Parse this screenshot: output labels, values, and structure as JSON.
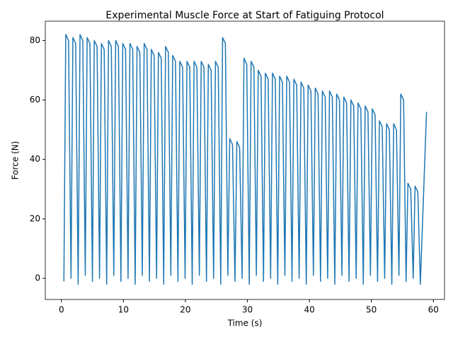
{
  "chart_data": {
    "type": "line",
    "title": "Experimental Muscle Force at Start of Fatiguing Protocol",
    "x_label": "Time (s)",
    "y_label": "Force (N)",
    "xlim": [
      -2.6,
      61.8
    ],
    "ylim": [
      -7.1,
      86.5
    ],
    "xticks": [
      0,
      10,
      20,
      30,
      40,
      50,
      60
    ],
    "yticks": [
      0,
      20,
      40,
      60,
      80
    ],
    "grid": false,
    "series": [
      {
        "color": "#1f77b4",
        "x": [
          0.4,
          0.7,
          1.15,
          1.55,
          1.85,
          2.3,
          2.7,
          3.0,
          3.45,
          3.85,
          4.15,
          4.6,
          5.0,
          5.3,
          5.75,
          6.15,
          6.45,
          6.9,
          7.3,
          7.6,
          8.05,
          8.45,
          8.75,
          9.2,
          9.6,
          9.9,
          10.35,
          10.75,
          11.05,
          11.5,
          11.9,
          12.2,
          12.65,
          13.05,
          13.35,
          13.8,
          14.2,
          14.5,
          14.95,
          15.35,
          15.65,
          16.1,
          16.5,
          16.8,
          17.25,
          17.65,
          17.95,
          18.4,
          18.8,
          19.1,
          19.55,
          19.95,
          20.25,
          20.7,
          21.1,
          21.4,
          21.85,
          22.25,
          22.55,
          23.0,
          23.4,
          23.7,
          24.15,
          24.55,
          24.85,
          25.3,
          25.7,
          26.0,
          26.45,
          26.85,
          27.15,
          27.6,
          28.0,
          28.3,
          28.75,
          29.15,
          29.45,
          29.9,
          30.3,
          30.6,
          31.05,
          31.45,
          31.75,
          32.2,
          32.6,
          32.9,
          33.35,
          33.75,
          34.05,
          34.5,
          34.9,
          35.2,
          35.65,
          36.05,
          36.35,
          36.8,
          37.2,
          37.5,
          37.95,
          38.35,
          38.65,
          39.1,
          39.5,
          39.8,
          40.25,
          40.65,
          40.95,
          41.4,
          41.8,
          42.1,
          42.55,
          42.95,
          43.25,
          43.7,
          44.1,
          44.4,
          44.85,
          45.25,
          45.55,
          46.0,
          46.4,
          46.7,
          47.15,
          47.55,
          47.85,
          48.3,
          48.7,
          49.0,
          49.45,
          49.85,
          50.15,
          50.6,
          51.0,
          51.3,
          51.75,
          52.15,
          52.45,
          52.9,
          53.3,
          53.6,
          54.05,
          54.45,
          54.75,
          55.2,
          55.6,
          55.9,
          56.35,
          56.75,
          57.05,
          57.5,
          57.9,
          58.9
        ],
        "values": [
          -1,
          82,
          80,
          0,
          81,
          79,
          -2,
          82,
          80,
          1,
          81,
          79,
          -1,
          80,
          78,
          0,
          79,
          77,
          -2,
          80,
          78,
          1,
          80,
          78,
          -1,
          79,
          77,
          0,
          79,
          77,
          -2,
          78,
          76,
          1,
          79,
          77,
          -1,
          77,
          75,
          0,
          76,
          74,
          -2,
          78,
          76,
          1,
          75,
          73,
          -1,
          73,
          71,
          0,
          73,
          71,
          -2,
          73,
          71,
          1,
          73,
          71,
          -1,
          72,
          70,
          0,
          73,
          71,
          -2,
          81,
          79,
          1,
          47,
          45,
          -1,
          46,
          44,
          0,
          74,
          72,
          -2,
          73,
          71,
          1,
          70,
          68,
          -1,
          69,
          67,
          0,
          69,
          67,
          -2,
          68,
          66,
          1,
          68,
          66,
          -1,
          67,
          65,
          0,
          66,
          64,
          -2,
          65,
          63,
          1,
          64,
          62,
          -1,
          63,
          61,
          0,
          63,
          61,
          -2,
          62,
          60,
          1,
          61,
          59,
          -1,
          60,
          58,
          0,
          59,
          57,
          -2,
          58,
          56,
          1,
          57,
          55,
          -1,
          53,
          51,
          0,
          52,
          50,
          -2,
          52,
          50,
          1,
          62,
          60,
          -1,
          32,
          30,
          0,
          31,
          29,
          -2,
          56
        ]
      }
    ]
  }
}
